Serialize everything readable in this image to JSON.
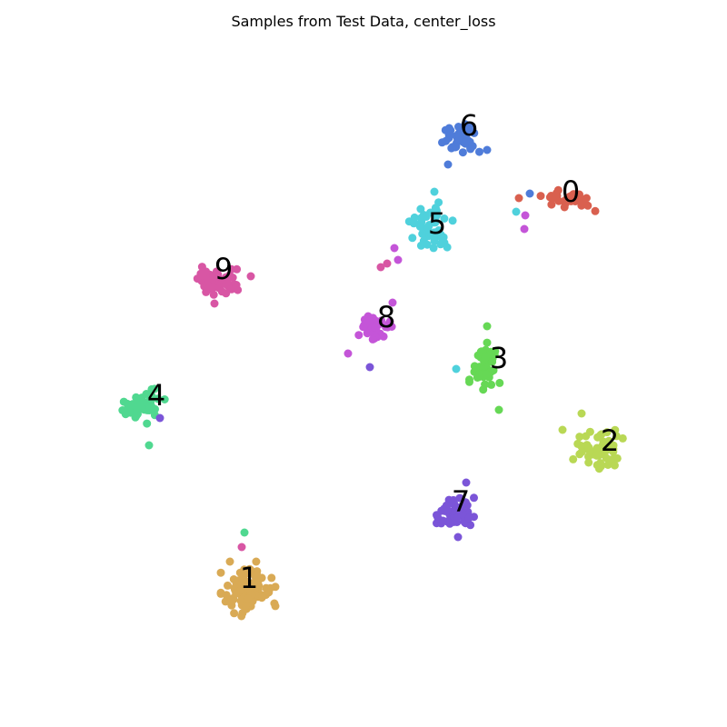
{
  "chart_data": {
    "type": "scatter",
    "title": "Samples from Test Data, center_loss",
    "axes_visible": false,
    "grid": false,
    "legend": "none",
    "xlim": [
      0,
      800
    ],
    "ylim": [
      0,
      800
    ],
    "clusters": [
      {
        "label": "0",
        "color": "#d9604f",
        "center": [
          625,
          220
        ],
        "spread": [
          22,
          10
        ],
        "count": 32,
        "seed": 11,
        "outliers": [
          [
            568,
            233,
            "#4fd1dc"
          ],
          [
            578,
            237,
            "#c455d8"
          ],
          [
            577,
            252,
            "#c455d8"
          ],
          [
            583,
            213,
            "#4f7cd9"
          ],
          [
            571,
            218,
            "#d9604f"
          ]
        ]
      },
      {
        "label": "1",
        "color": "#d9aa55",
        "center": [
          273,
          648
        ],
        "spread": [
          22,
          22
        ],
        "count": 95,
        "seed": 12,
        "outliers": [
          [
            269,
            586,
            "#50d890"
          ],
          [
            266,
            602,
            "#d856a4"
          ]
        ]
      },
      {
        "label": "2",
        "color": "#b9d855",
        "center": [
          658,
          495
        ],
        "spread": [
          20,
          16
        ],
        "count": 60,
        "seed": 13,
        "outliers": [
          [
            640,
            455,
            "#b9d855"
          ],
          [
            619,
            473,
            "#b9d855"
          ]
        ]
      },
      {
        "label": "3",
        "color": "#66d855",
        "center": [
          537,
          403
        ],
        "spread": [
          15,
          19
        ],
        "count": 50,
        "seed": 14,
        "outliers": [
          [
            502,
            406,
            "#4fd1dc"
          ],
          [
            549,
            451,
            "#66d855"
          ],
          [
            536,
            359,
            "#66d855"
          ]
        ]
      },
      {
        "label": "4",
        "color": "#50d890",
        "center": [
          158,
          447
        ],
        "spread": [
          17,
          14
        ],
        "count": 50,
        "seed": 15,
        "outliers": [
          [
            176,
            460,
            "#7b55d8"
          ],
          [
            164,
            490,
            "#50d890"
          ]
        ]
      },
      {
        "label": "5",
        "color": "#4fd1dc",
        "center": [
          474,
          250
        ],
        "spread": [
          18,
          20
        ],
        "count": 50,
        "seed": 16,
        "outliers": [
          [
            419,
            294,
            "#d856a4"
          ],
          [
            426,
            290,
            "#d856a4"
          ],
          [
            438,
            286,
            "#c455d8"
          ],
          [
            434,
            273,
            "#c455d8"
          ],
          [
            478,
            211,
            "#4fd1dc"
          ]
        ]
      },
      {
        "label": "6",
        "color": "#4f7cd9",
        "center": [
          507,
          150
        ],
        "spread": [
          15,
          13
        ],
        "count": 42,
        "seed": 17,
        "outliers": [
          [
            493,
            181,
            "#4f7cd9"
          ],
          [
            536,
            165,
            "#4f7cd9"
          ]
        ]
      },
      {
        "label": "7",
        "color": "#7b55d8",
        "center": [
          501,
          564
        ],
        "spread": [
          15,
          13
        ],
        "count": 55,
        "seed": 18,
        "outliers": [
          [
            504,
            591,
            "#7b55d8"
          ],
          [
            513,
            531,
            "#7b55d8"
          ]
        ]
      },
      {
        "label": "8",
        "color": "#c455d8",
        "center": [
          412,
          363
        ],
        "spread": [
          14,
          11
        ],
        "count": 35,
        "seed": 19,
        "outliers": [
          [
            407,
            404,
            "#7b55d8"
          ],
          [
            383,
            389,
            "#c455d8"
          ],
          [
            432,
            333,
            "#c455d8"
          ]
        ]
      },
      {
        "label": "9",
        "color": "#d856a4",
        "center": [
          237,
          310
        ],
        "spread": [
          18,
          12
        ],
        "count": 55,
        "seed": 20,
        "outliers": [
          [
            276,
            304,
            "#d856a4"
          ],
          [
            236,
            334,
            "#d856a4"
          ]
        ]
      }
    ],
    "cluster_labels": [
      {
        "text": "0",
        "pos": [
          628,
          213
        ]
      },
      {
        "text": "1",
        "pos": [
          274,
          638
        ]
      },
      {
        "text": "2",
        "pos": [
          671,
          487
        ]
      },
      {
        "text": "3",
        "pos": [
          549,
          396
        ]
      },
      {
        "text": "4",
        "pos": [
          172,
          437
        ]
      },
      {
        "text": "5",
        "pos": [
          481,
          248
        ]
      },
      {
        "text": "6",
        "pos": [
          516,
          140
        ]
      },
      {
        "text": "7",
        "pos": [
          507,
          554
        ]
      },
      {
        "text": "8",
        "pos": [
          425,
          351
        ]
      },
      {
        "text": "9",
        "pos": [
          246,
          298
        ]
      }
    ]
  }
}
